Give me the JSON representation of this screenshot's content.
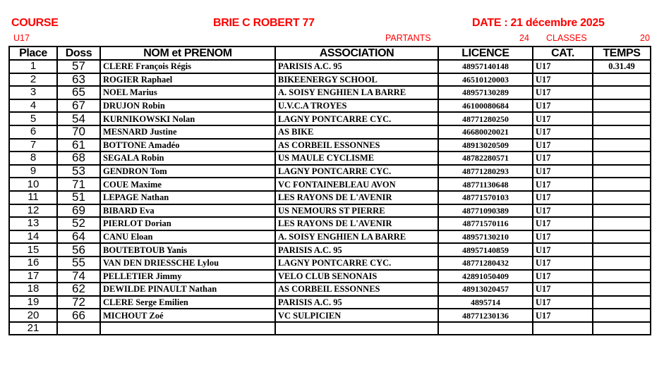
{
  "header": {
    "course_label": "COURSE",
    "race_name": "BRIE C ROBERT  77",
    "date": "DATE :  21 décembre 2025",
    "category": "U17",
    "partants_label": "PARTANTS",
    "partants_count": "24",
    "classes_label": "CLASSES",
    "classes_count": "20",
    "color": "#ff0000"
  },
  "columns": [
    "Place",
    "Doss",
    "NOM et PRENOM",
    "ASSOCIATION",
    "LICENCE",
    "CAT.",
    "TEMPS"
  ],
  "rows": [
    {
      "place": "1",
      "doss": "57",
      "name": "CLERE   François Régis",
      "club": "PARISIS A.C. 95",
      "licence": "48957140148",
      "cat": "U17",
      "time": "0.31.49"
    },
    {
      "place": "2",
      "doss": "63",
      "name": "ROGIER   Raphael",
      "club": "BIKEENERGY SCHOOL",
      "licence": "46510120003",
      "cat": "U17",
      "time": ""
    },
    {
      "place": "3",
      "doss": "65",
      "name": "NOEL   Marius",
      "club": "A. SOISY ENGHIEN LA BARRE",
      "licence": "48957130289",
      "cat": "U17",
      "time": ""
    },
    {
      "place": "4",
      "doss": "67",
      "name": "DRUJON   Robin",
      "club": "U.V.C.A TROYES",
      "licence": "46100080684",
      "cat": "U17",
      "time": ""
    },
    {
      "place": "5",
      "doss": "54",
      "name": "KURNIKOWSKI   Nolan",
      "club": "LAGNY PONTCARRE CYC.",
      "licence": "48771280250",
      "cat": "U17",
      "time": ""
    },
    {
      "place": "6",
      "doss": "70",
      "name": "MESNARD   Justine",
      "club": "AS BIKE",
      "licence": "46680020021",
      "cat": "U17",
      "time": ""
    },
    {
      "place": "7",
      "doss": "61",
      "name": "BOTTONE   Amadéo",
      "club": "AS CORBEIL ESSONNES",
      "licence": "48913020509",
      "cat": "U17",
      "time": ""
    },
    {
      "place": "8",
      "doss": "68",
      "name": "SEGALA   Robin",
      "club": "US MAULE CYCLISME",
      "licence": "48782280571",
      "cat": "U17",
      "time": ""
    },
    {
      "place": "9",
      "doss": "53",
      "name": "GENDRON   Tom",
      "club": "LAGNY PONTCARRE CYC.",
      "licence": "48771280293",
      "cat": "U17",
      "time": ""
    },
    {
      "place": "10",
      "doss": "71",
      "name": "COUE   Maxime",
      "club": "VC FONTAINEBLEAU AVON",
      "licence": "48771130648",
      "cat": "U17",
      "time": ""
    },
    {
      "place": "11",
      "doss": "51",
      "name": "LEPAGE   Nathan",
      "club": "LES RAYONS DE L'AVENIR",
      "licence": "48771570103",
      "cat": "U17",
      "time": ""
    },
    {
      "place": "12",
      "doss": "69",
      "name": "BIBARD   Eva",
      "club": "US NEMOURS ST PIERRE",
      "licence": "48771090389",
      "cat": "U17",
      "time": ""
    },
    {
      "place": "13",
      "doss": "52",
      "name": "PIERLOT   Dorian",
      "club": "LES RAYONS DE L'AVENIR",
      "licence": "48771570116",
      "cat": "U17",
      "time": ""
    },
    {
      "place": "14",
      "doss": "64",
      "name": "CANU   Eloan",
      "club": "A. SOISY ENGHIEN LA BARRE",
      "licence": "48957130210",
      "cat": "U17",
      "time": ""
    },
    {
      "place": "15",
      "doss": "56",
      "name": "BOUTEBTOUB   Yanis",
      "club": "PARISIS A.C. 95",
      "licence": "48957140859",
      "cat": "U17",
      "time": ""
    },
    {
      "place": "16",
      "doss": "55",
      "name": "VAN DEN DRIESSCHE   Lylou",
      "club": "LAGNY PONTCARRE CYC.",
      "licence": "48771280432",
      "cat": "U17",
      "time": ""
    },
    {
      "place": "17",
      "doss": "74",
      "name": "PELLETIER   Jimmy",
      "club": "VELO CLUB SENONAIS",
      "licence": "42891050409",
      "cat": "U17",
      "time": ""
    },
    {
      "place": "18",
      "doss": "62",
      "name": "DEWILDE PINAULT   Nathan",
      "club": "AS CORBEIL ESSONNES",
      "licence": "48913020457",
      "cat": "U17",
      "time": ""
    },
    {
      "place": "19",
      "doss": "72",
      "name": "CLERE   Serge Emilien",
      "club": "PARISIS A.C. 95",
      "licence": "4895714",
      "cat": "U17",
      "time": ""
    },
    {
      "place": "20",
      "doss": "66",
      "name": "MICHOUT   Zoé",
      "club": "VC SULPICIEN",
      "licence": "48771230136",
      "cat": "U17",
      "time": ""
    },
    {
      "place": "21",
      "doss": "",
      "name": "",
      "club": "",
      "licence": "",
      "cat": "",
      "time": ""
    }
  ]
}
